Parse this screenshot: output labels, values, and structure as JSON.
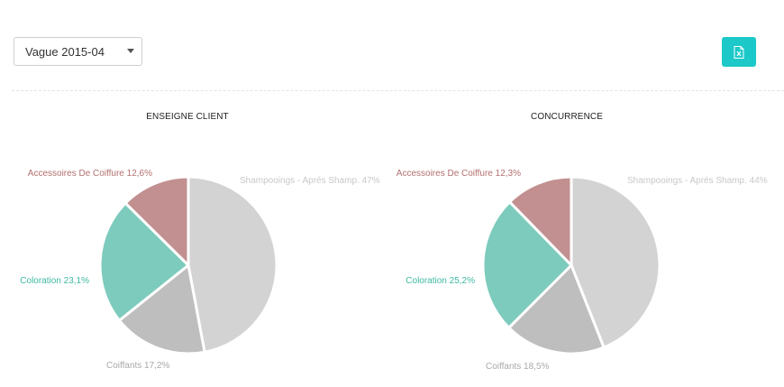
{
  "filter": {
    "selected": "Vague 2015-04"
  },
  "export": {
    "icon": "excel-file-icon"
  },
  "colors": {
    "shampoo": "#d3d3d3",
    "coiffants": "#bebebe",
    "coloration": "#7dcbbd",
    "accessoires": "#c29090",
    "shampoo_label": "#c8c8c8",
    "coiffants_label": "#a9a9a9",
    "coloration_label": "#3fb8a3",
    "accessoires_label": "#b46f6f",
    "button": "#1cc8c8"
  },
  "chart_data": [
    {
      "type": "pie",
      "title": "ENSEIGNE CLIENT",
      "slices": [
        {
          "label": "Shampooings - Après Shamp.",
          "value": 47,
          "display": "Shampooings - Aprés Shamp.  47%"
        },
        {
          "label": "Coiffants",
          "value": 17.2,
          "display": "Coiffants 17,2%"
        },
        {
          "label": "Coloration",
          "value": 23.1,
          "display": "Coloration 23,1%"
        },
        {
          "label": "Accessoires De Coiffure",
          "value": 12.6,
          "display": "Accessoires De Coiffure 12,6%"
        }
      ]
    },
    {
      "type": "pie",
      "title": "CONCURRENCE",
      "slices": [
        {
          "label": "Shampooings - Après Shamp.",
          "value": 44,
          "display": "Shampooings - Aprés Shamp.  44%"
        },
        {
          "label": "Coiffants",
          "value": 18.5,
          "display": "Coiffants 18,5%"
        },
        {
          "label": "Coloration",
          "value": 25.2,
          "display": "Coloration 25,2%"
        },
        {
          "label": "Accessoires De Coiffure",
          "value": 12.3,
          "display": "Accessoires De Coiffure 12,3%"
        }
      ]
    }
  ]
}
